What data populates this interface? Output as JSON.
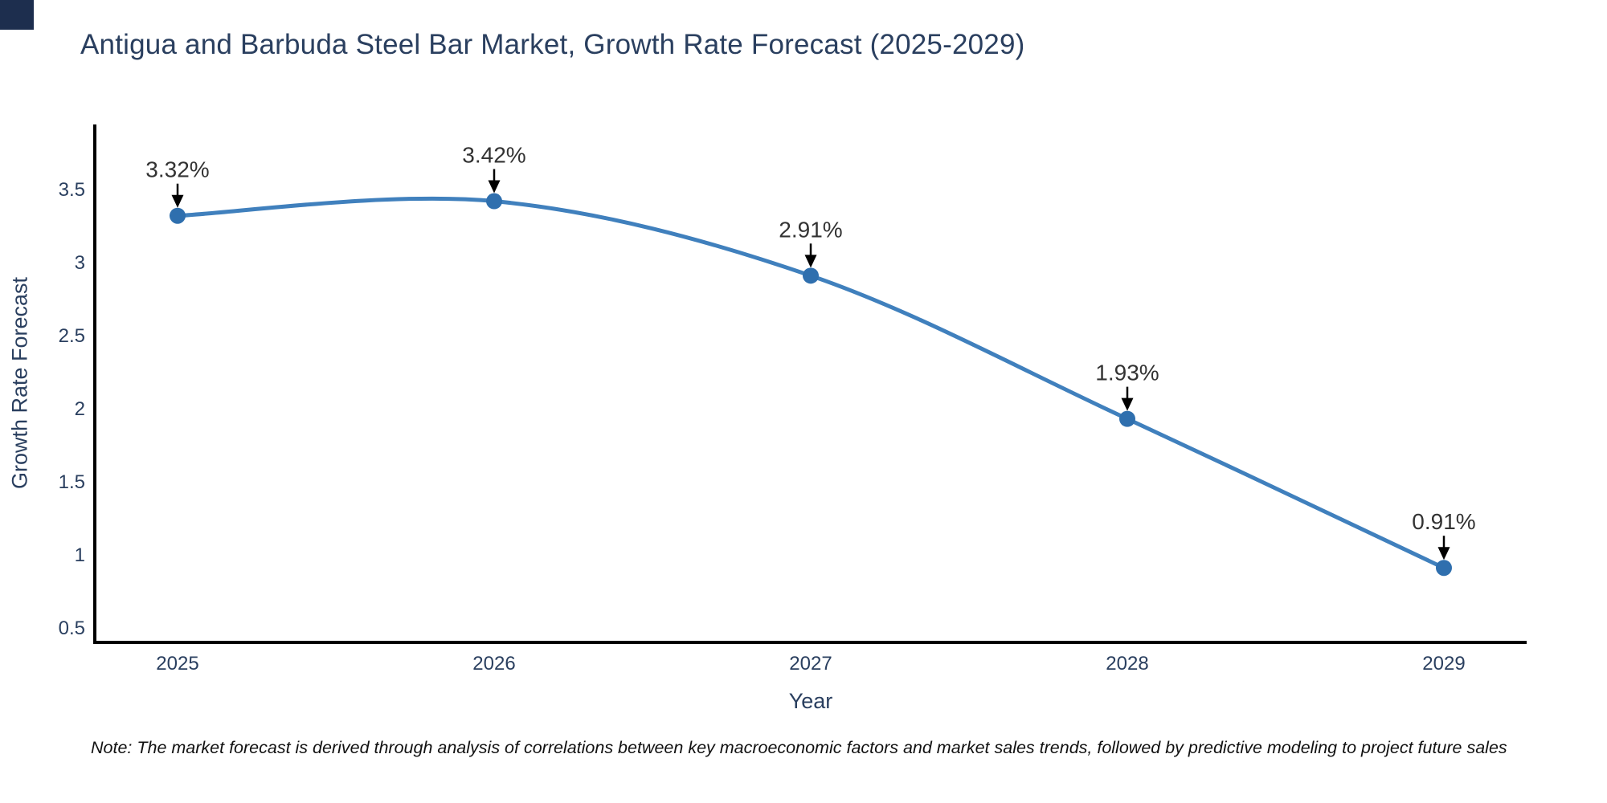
{
  "page": {
    "background": "#ffffff",
    "corner_block_color": "#1d2e4e"
  },
  "chart_data": {
    "type": "line",
    "curve": "spline",
    "title": "Antigua and Barbuda Steel Bar Market, Growth Rate Forecast (2025-2029)",
    "xlabel": "Year",
    "ylabel": "Growth Rate Forecast",
    "x": [
      2025,
      2026,
      2027,
      2028,
      2029
    ],
    "y": [
      3.32,
      3.42,
      2.91,
      1.93,
      0.91
    ],
    "point_labels": [
      "3.32%",
      "3.42%",
      "2.91%",
      "1.93%",
      "0.91%"
    ],
    "yticks": [
      0.5,
      1,
      1.5,
      2,
      2.5,
      3,
      3.5
    ],
    "ylim": [
      0.4,
      3.945
    ],
    "grid": false,
    "legend": false,
    "colors": {
      "line": "#4080bd",
      "marker": "#2f6fae",
      "axis_line": "#000000",
      "tick_label": "#2a3f5f",
      "axis_title": "#2a3f5f",
      "title": "#2a3f5f",
      "annotation_text": "#333333",
      "annotation_arrow": "#000000"
    }
  },
  "note": {
    "text": "Note: The market forecast is derived through analysis of correlations between key macroeconomic factors and market sales trends, followed by predictive modeling to project future sales"
  }
}
